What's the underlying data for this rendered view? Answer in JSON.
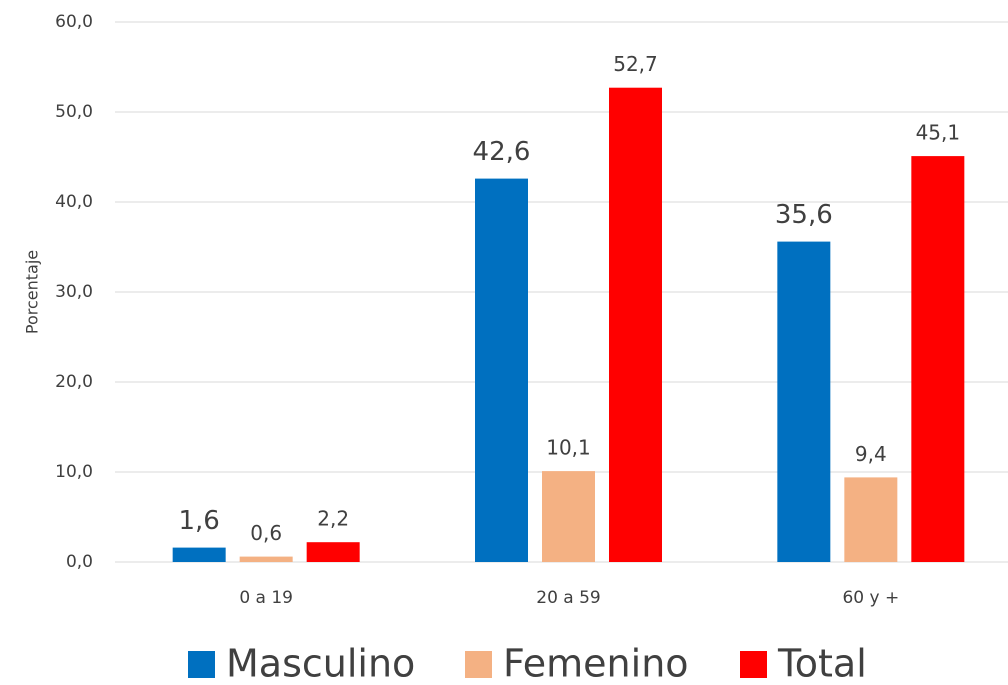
{
  "chart_data": {
    "type": "bar",
    "y_label": "Porcentaje",
    "categories": [
      "0 a 19",
      "20 a 59",
      "60 y +"
    ],
    "series": [
      {
        "name": "Masculino",
        "color": "#0070c0",
        "values": [
          1.6,
          42.6,
          35.6
        ],
        "value_labels": [
          "1,6",
          "42,6",
          "35,6"
        ]
      },
      {
        "name": "Femenino",
        "color": "#f4b183",
        "values": [
          0.6,
          10.1,
          9.4
        ],
        "value_labels": [
          "0,6",
          "10,1",
          "9,4"
        ]
      },
      {
        "name": "Total",
        "color": "#ff0000",
        "values": [
          2.2,
          52.7,
          45.1
        ],
        "value_labels": [
          "2,2",
          "52,7",
          "45,1"
        ]
      }
    ],
    "ylim": [
      0,
      60
    ],
    "yticks": [
      {
        "value": 0,
        "label": "0,0"
      },
      {
        "value": 10,
        "label": "10,0"
      },
      {
        "value": 20,
        "label": "20,0"
      },
      {
        "value": 30,
        "label": "30,0"
      },
      {
        "value": 40,
        "label": "40,0"
      },
      {
        "value": 50,
        "label": "50,0"
      },
      {
        "value": 60,
        "label": "60,0"
      }
    ],
    "grid": true,
    "legend": "bottom"
  }
}
